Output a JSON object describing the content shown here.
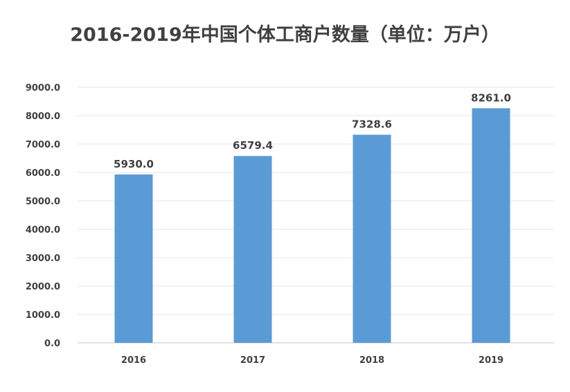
{
  "chart_data": {
    "type": "bar",
    "title": "2016-2019年中国个体工商户数量（单位：万户）",
    "categories": [
      "2016",
      "2017",
      "2018",
      "2019"
    ],
    "values": [
      5930.0,
      6579.4,
      7328.6,
      8261.0
    ],
    "value_labels": [
      "5930.0",
      "6579.4",
      "7328.6",
      "8261.0"
    ],
    "xlabel": "",
    "ylabel": "",
    "ylim": [
      0,
      9000
    ],
    "yticks": [
      "0.0",
      "1000.0",
      "2000.0",
      "3000.0",
      "4000.0",
      "5000.0",
      "6000.0",
      "7000.0",
      "8000.0",
      "9000.0"
    ],
    "grid": true,
    "legend": "none",
    "colors": {
      "bar": "#5b9bd5",
      "grid": "#e6e6e6",
      "axis": "#d9d9d9",
      "text": "#404040"
    }
  }
}
